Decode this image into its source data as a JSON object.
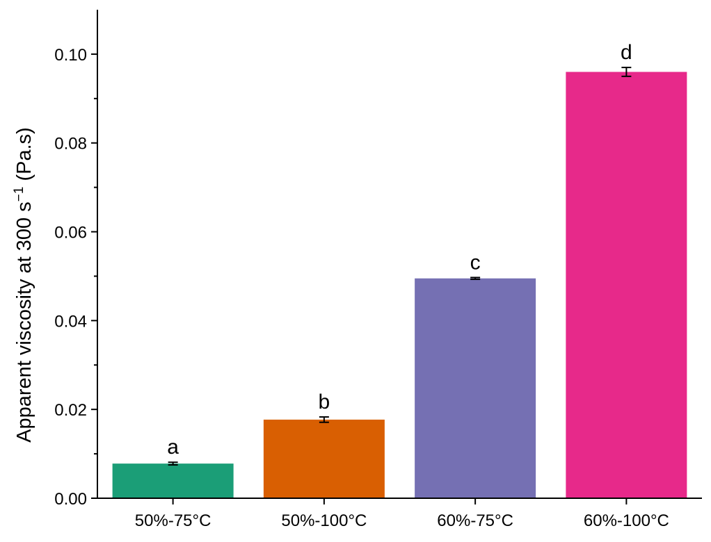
{
  "chart_data": {
    "type": "bar",
    "categories": [
      "50%-75°C",
      "50%-100°C",
      "60%-75°C",
      "60%-100°C"
    ],
    "values": [
      0.0078,
      0.0177,
      0.0495,
      0.096
    ],
    "errors": [
      0.0003,
      0.0006,
      0.0002,
      0.001
    ],
    "significance_letters": [
      "a",
      "b",
      "c",
      "d"
    ],
    "colors": [
      "#1b9e77",
      "#d95f02",
      "#7570b3",
      "#e7298a"
    ],
    "ylabel_main": "Apparent viscosity at 300 s",
    "ylabel_sup": "−1",
    "ylabel_unit": " (Pa.s)",
    "xlabel": "",
    "ylim": [
      0,
      0.11
    ],
    "yticks": [
      0.0,
      0.02,
      0.04,
      0.06,
      0.08,
      0.1
    ],
    "ytick_labels": [
      "0.00",
      "0.02",
      "0.04",
      "0.06",
      "0.08",
      "0.10"
    ],
    "grid": false,
    "legend": "none"
  }
}
